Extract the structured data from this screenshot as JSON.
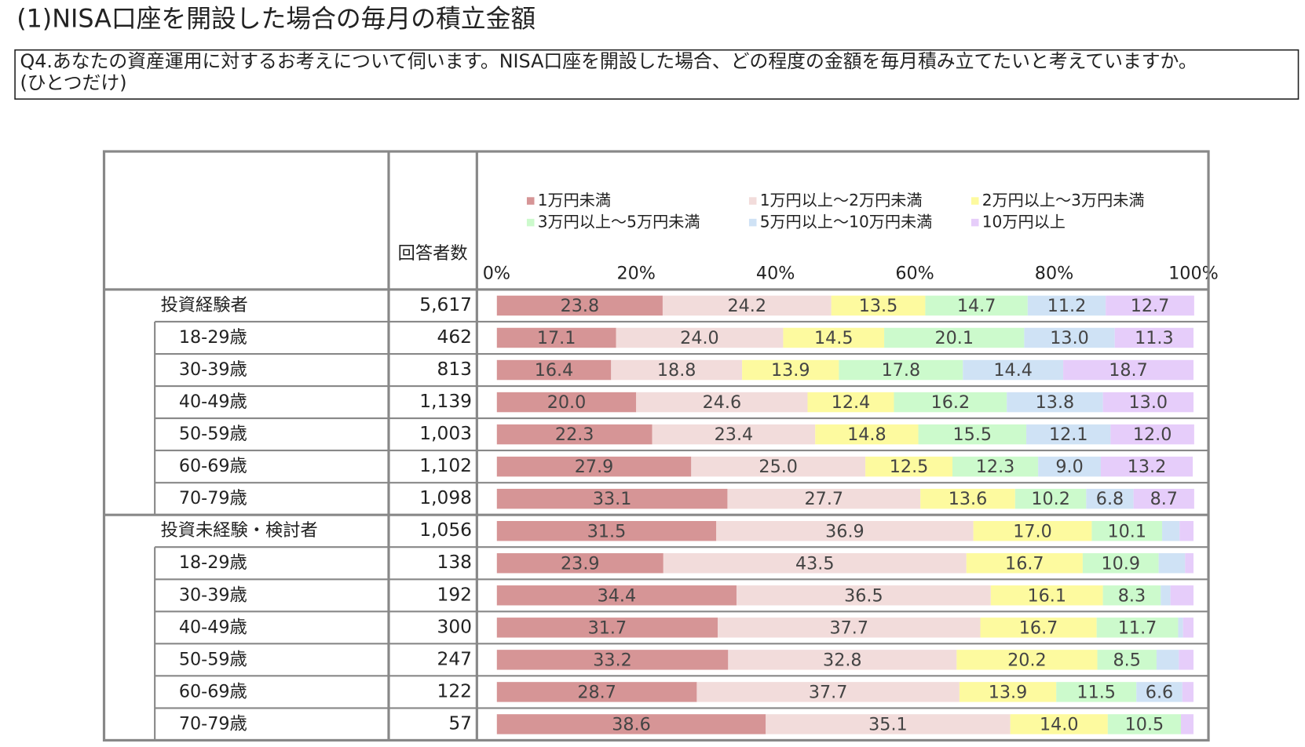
{
  "title": "(1)NISA口座を開設した場合の毎月の積立金額",
  "question": [
    "Q4.あなたの資産運用に対するお考えについて伺います。NISA口座を開設した場合、どの程度の金額を毎月積み立てたいと考えていますか。",
    "(ひとつだけ)"
  ],
  "chart_data": {
    "type": "stacked-bar-100",
    "orientation": "horizontal",
    "count_header": "回答者数",
    "categories": [
      "投資経験者",
      "18-29歳",
      "30-39歳",
      "40-49歳",
      "50-59歳",
      "60-69歳",
      "70-79歳",
      "投資未経験・検討者",
      "18-29歳",
      "30-39歳",
      "40-49歳",
      "50-59歳",
      "60-69歳",
      "70-79歳"
    ],
    "counts": [
      {
        "value": 5617,
        "label": "5,617"
      },
      462,
      813,
      {
        "value": 1139,
        "label": "1,139"
      },
      {
        "value": 1003,
        "label": "1,003"
      },
      {
        "value": 1102,
        "label": "1,102"
      },
      {
        "value": 1098,
        "label": "1,098"
      },
      {
        "value": 1056,
        "label": "1,056"
      },
      138,
      192,
      300,
      247,
      122,
      57
    ],
    "xlim": [
      0,
      100
    ],
    "xticks": [
      {
        "value": 0,
        "label": "0%"
      },
      {
        "value": 20,
        "label": "20%"
      },
      {
        "value": 40,
        "label": "40%"
      },
      {
        "value": 60,
        "label": "60%"
      },
      {
        "value": 80,
        "label": "80%"
      },
      {
        "value": 100,
        "label": "100%"
      }
    ],
    "grid": false,
    "series": [
      {
        "name": "1万円未満",
        "color": "#d69596",
        "values": [
          23.8,
          17.1,
          16.4,
          20.0,
          22.3,
          27.9,
          33.1,
          31.5,
          23.9,
          34.4,
          31.7,
          33.2,
          28.7,
          38.6
        ],
        "value_labels": [
          "23.8",
          "17.1",
          "16.4",
          "20.0",
          "22.3",
          "27.9",
          "33.1",
          "31.5",
          "23.9",
          "34.4",
          "31.7",
          "33.2",
          "28.7",
          "38.6"
        ]
      },
      {
        "name": "1万円以上～2万円未満",
        "color": "#f2dcdb",
        "values": [
          24.2,
          24.0,
          18.8,
          24.6,
          23.4,
          25.0,
          27.7,
          36.9,
          43.5,
          36.5,
          37.7,
          32.8,
          37.7,
          35.1
        ],
        "value_labels": [
          "24.2",
          "24.0",
          "18.8",
          "24.6",
          "23.4",
          "25.0",
          "27.7",
          "36.9",
          "43.5",
          "36.5",
          "37.7",
          "32.8",
          "37.7",
          "35.1"
        ]
      },
      {
        "name": "2万円以上～3万円未満",
        "color": "#fdfa9f",
        "values": [
          13.5,
          14.5,
          13.9,
          12.4,
          14.8,
          12.5,
          13.6,
          17.0,
          16.7,
          16.1,
          16.7,
          20.2,
          13.9,
          14.0
        ],
        "value_labels": [
          "13.5",
          "14.5",
          "13.9",
          "12.4",
          "14.8",
          "12.5",
          "13.6",
          "17.0",
          "16.7",
          "16.1",
          "16.7",
          "20.2",
          "13.9",
          "14.0"
        ]
      },
      {
        "name": "3万円以上～5万円未満",
        "color": "#ccfacc",
        "values": [
          14.7,
          20.1,
          17.8,
          16.2,
          15.5,
          12.3,
          10.2,
          10.1,
          10.9,
          8.3,
          11.7,
          8.5,
          11.5,
          10.5
        ],
        "value_labels": [
          "14.7",
          "20.1",
          "17.8",
          "16.2",
          "15.5",
          "12.3",
          "10.2",
          "10.1",
          "10.9",
          "8.3",
          "11.7",
          "8.5",
          "11.5",
          "10.5"
        ]
      },
      {
        "name": "5万円以上～10万円未満",
        "color": "#cfe2f5",
        "values": [
          11.2,
          13.0,
          14.4,
          13.8,
          12.1,
          9.0,
          6.8,
          2.5,
          3.8,
          1.4,
          0.7,
          3.2,
          6.6,
          0.0
        ],
        "value_labels": [
          "11.2",
          "13.0",
          "14.4",
          "13.8",
          "12.1",
          "9.0",
          "6.8",
          null,
          null,
          null,
          null,
          null,
          "6.6",
          null
        ]
      },
      {
        "name": "10万円以上",
        "color": "#e6cdfa",
        "values": [
          12.7,
          11.3,
          18.7,
          13.0,
          12.0,
          13.2,
          8.7,
          2.0,
          1.2,
          3.3,
          1.5,
          2.1,
          1.6,
          1.8
        ],
        "value_labels": [
          "12.7",
          "11.3",
          "18.7",
          "13.0",
          "12.0",
          "13.2",
          "8.7",
          null,
          null,
          null,
          null,
          null,
          null,
          null
        ]
      }
    ]
  }
}
